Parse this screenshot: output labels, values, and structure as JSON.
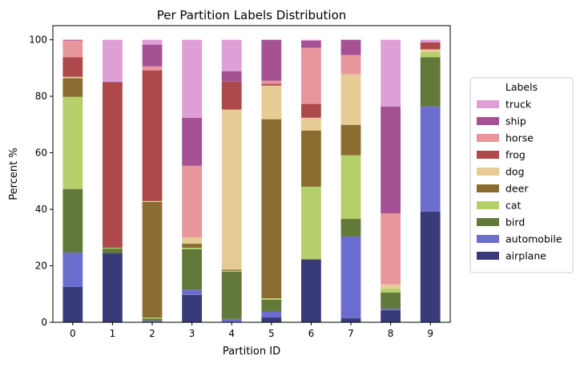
{
  "chart_data": {
    "type": "bar",
    "stacked": true,
    "title": "Per Partition Labels Distribution",
    "xlabel": "Partition ID",
    "ylabel": "Percent %",
    "ylim": [
      0,
      105
    ],
    "yticks": [
      0,
      20,
      40,
      60,
      80,
      100
    ],
    "grid": false,
    "legend": {
      "title": "Labels",
      "placement": "right-outside",
      "order": "reversed"
    },
    "categories": [
      "0",
      "1",
      "2",
      "3",
      "4",
      "5",
      "6",
      "7",
      "8",
      "9"
    ],
    "series": [
      {
        "name": "airplane",
        "color": "#393b79",
        "values": [
          12.5,
          24.4,
          0.2,
          9.7,
          0,
          1.7,
          22.2,
          1.4,
          4.3,
          39.2
        ]
      },
      {
        "name": "automobile",
        "color": "#6b6ecf",
        "values": [
          12.2,
          0,
          0.4,
          1.9,
          1.2,
          2.0,
          0,
          29.0,
          0.5,
          37.2
        ]
      },
      {
        "name": "bird",
        "color": "#637939",
        "values": [
          22.5,
          1.7,
          0.7,
          14.3,
          16.7,
          4.3,
          0.2,
          6.2,
          5.7,
          17.4
        ]
      },
      {
        "name": "cat",
        "color": "#b5cf6b",
        "values": [
          32.6,
          0.3,
          0.4,
          0.5,
          0.3,
          0.5,
          25.6,
          22.5,
          1.4,
          1.9
        ]
      },
      {
        "name": "deer",
        "color": "#8c6d31",
        "values": [
          6.6,
          0,
          40.9,
          1.4,
          0.4,
          63.4,
          19.9,
          10.8,
          0,
          0
        ]
      },
      {
        "name": "dog",
        "color": "#e7cb94",
        "values": [
          0.5,
          0,
          0.3,
          2.3,
          56.7,
          11.9,
          4.5,
          17.9,
          1.5,
          0.9
        ]
      },
      {
        "name": "frog",
        "color": "#ad494a",
        "values": [
          6.9,
          58.5,
          46.3,
          0,
          9.9,
          0.6,
          4.9,
          0,
          0,
          2.5
        ]
      },
      {
        "name": "horse",
        "color": "#e7969c",
        "values": [
          5.9,
          0,
          1.4,
          25.3,
          0,
          1.1,
          19.9,
          6.8,
          25.2,
          0
        ]
      },
      {
        "name": "ship",
        "color": "#a55194",
        "values": [
          0.3,
          0.3,
          7.7,
          17.0,
          3.7,
          14.5,
          2.5,
          5.4,
          37.8,
          0
        ]
      },
      {
        "name": "truck",
        "color": "#de9ed6",
        "values": [
          0,
          14.8,
          1.7,
          27.6,
          11.1,
          0,
          0.3,
          0,
          23.6,
          0.9
        ]
      }
    ]
  }
}
